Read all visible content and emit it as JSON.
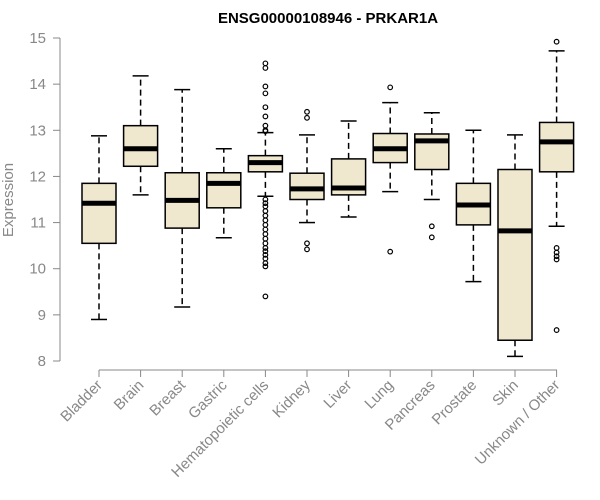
{
  "chart_data": {
    "type": "box",
    "title": "ENSG00000108946 - PRKAR1A",
    "xlabel": "",
    "ylabel": "Expression",
    "ylim": [
      8,
      15
    ],
    "yticks": [
      8,
      9,
      10,
      11,
      12,
      13,
      14,
      15
    ],
    "categories": [
      "Bladder",
      "Brain",
      "Breast",
      "Gastric",
      "Hematopoietic cells",
      "Kidney",
      "Liver",
      "Lung",
      "Pancreas",
      "Prostate",
      "Skin",
      "Unknown / Other"
    ],
    "boxes": [
      {
        "name": "Bladder",
        "whisker_low": 8.9,
        "q1": 10.55,
        "median": 11.42,
        "q3": 11.85,
        "whisker_high": 12.88,
        "outliers": []
      },
      {
        "name": "Brain",
        "whisker_low": 11.6,
        "q1": 12.22,
        "median": 12.6,
        "q3": 13.1,
        "whisker_high": 14.18,
        "outliers": []
      },
      {
        "name": "Breast",
        "whisker_low": 9.17,
        "q1": 10.88,
        "median": 11.48,
        "q3": 12.08,
        "whisker_high": 13.88,
        "outliers": []
      },
      {
        "name": "Gastric",
        "whisker_low": 10.67,
        "q1": 11.32,
        "median": 11.85,
        "q3": 12.08,
        "whisker_high": 12.6,
        "outliers": []
      },
      {
        "name": "Hematopoietic cells",
        "whisker_low": 11.57,
        "q1": 12.1,
        "median": 12.3,
        "q3": 12.45,
        "whisker_high": 12.95,
        "outliers": [
          14.45,
          14.35,
          13.95,
          13.8,
          13.5,
          13.3,
          13.1,
          13.0,
          12.98,
          11.5,
          11.42,
          11.35,
          11.25,
          11.15,
          11.05,
          10.95,
          10.85,
          10.75,
          10.65,
          10.55,
          10.45,
          10.38,
          10.3,
          10.22,
          10.12,
          10.05,
          9.4
        ]
      },
      {
        "name": "Kidney",
        "whisker_low": 11.0,
        "q1": 11.5,
        "median": 11.73,
        "q3": 12.07,
        "whisker_high": 12.9,
        "outliers": [
          13.4,
          13.27,
          10.55,
          10.42
        ]
      },
      {
        "name": "Liver",
        "whisker_low": 11.12,
        "q1": 11.6,
        "median": 11.75,
        "q3": 12.38,
        "whisker_high": 13.2,
        "outliers": []
      },
      {
        "name": "Lung",
        "whisker_low": 11.67,
        "q1": 12.3,
        "median": 12.6,
        "q3": 12.93,
        "whisker_high": 13.6,
        "outliers": [
          13.93,
          10.37
        ]
      },
      {
        "name": "Pancreas",
        "whisker_low": 11.5,
        "q1": 12.15,
        "median": 12.77,
        "q3": 12.92,
        "whisker_high": 13.38,
        "outliers": [
          10.92,
          10.68
        ]
      },
      {
        "name": "Prostate",
        "whisker_low": 9.72,
        "q1": 10.95,
        "median": 11.38,
        "q3": 11.85,
        "whisker_high": 13.0,
        "outliers": []
      },
      {
        "name": "Skin",
        "whisker_low": 8.1,
        "q1": 8.45,
        "median": 10.82,
        "q3": 12.15,
        "whisker_high": 12.9,
        "outliers": []
      },
      {
        "name": "Unknown / Other",
        "whisker_low": 10.92,
        "q1": 12.1,
        "median": 12.75,
        "q3": 13.17,
        "whisker_high": 14.72,
        "outliers": [
          14.92,
          10.45,
          10.35,
          10.27,
          10.2,
          8.67
        ]
      }
    ],
    "grid": false,
    "legend": "none"
  }
}
